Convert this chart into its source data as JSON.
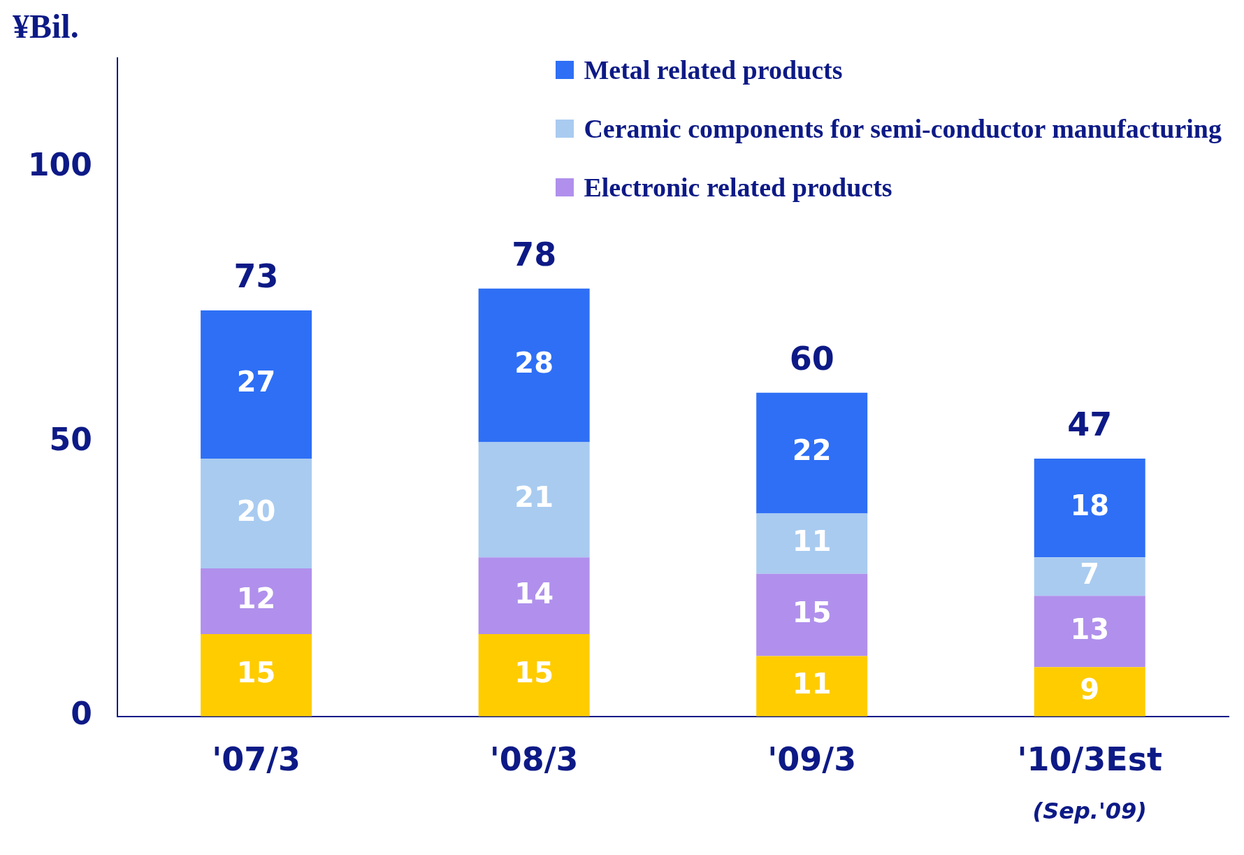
{
  "chart_data": {
    "type": "bar",
    "stacked": true,
    "ylabel": "¥Bil.",
    "categories": [
      "'07/3",
      "'08/3",
      "'09/3",
      "'10/3Est"
    ],
    "series": [
      {
        "color": "#ffcc00",
        "values": [
          15,
          15,
          11,
          9
        ]
      },
      {
        "name": "Electronic related products",
        "color": "#b090ec",
        "values": [
          12,
          14,
          15,
          13
        ]
      },
      {
        "name": "Ceramic components for semi-conductor manufacturing",
        "color": "#a9cbf0",
        "values": [
          20,
          21,
          11,
          7
        ]
      },
      {
        "name": "Metal related products",
        "color": "#2e6ff5",
        "values": [
          27,
          28,
          22,
          18
        ]
      }
    ],
    "totals": [
      "73",
      "78",
      "60",
      "47"
    ],
    "data_labels": true,
    "annotations": [
      "(Sep.'09)"
    ],
    "ylim": [
      0,
      120
    ],
    "yticks": [
      0,
      50,
      100
    ],
    "grid": false,
    "legend": "top right"
  }
}
